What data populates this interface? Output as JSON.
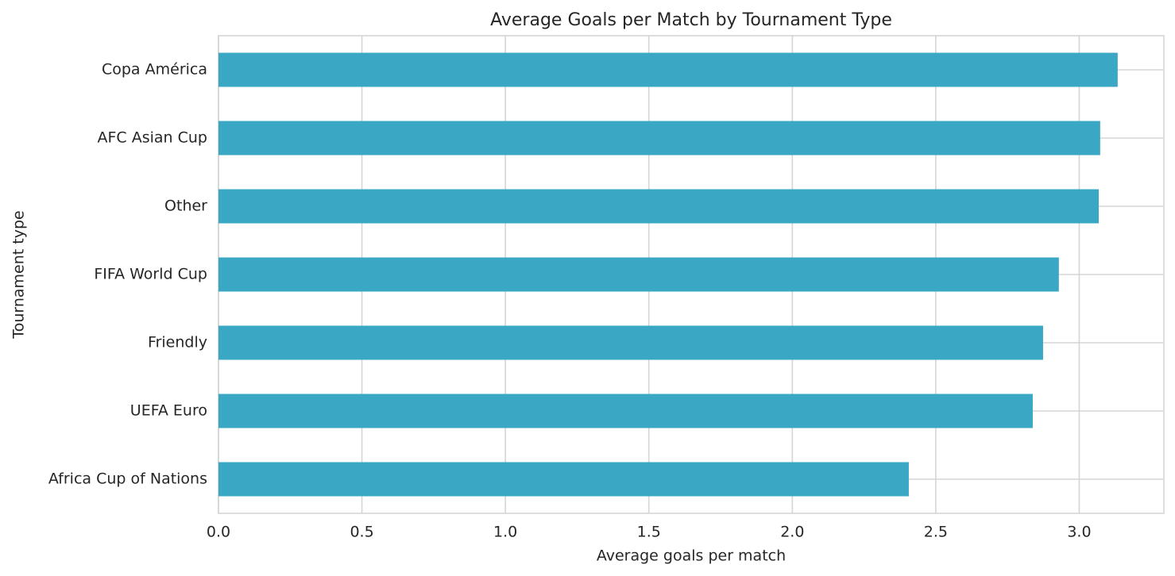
{
  "chart_data": {
    "type": "bar",
    "orientation": "horizontal",
    "title": "Average Goals per Match by Tournament Type",
    "x_label": "Average goals per match",
    "y_label": "Tournament type",
    "categories": [
      "Copa América",
      "AFC Asian Cup",
      "Other",
      "FIFA World Cup",
      "Friendly",
      "UEFA Euro",
      "Africa Cup of Nations"
    ],
    "values": [
      3.134,
      3.073,
      3.068,
      2.929,
      2.874,
      2.838,
      2.406
    ],
    "color": "#3aa8c4",
    "xlim": [
      0,
      3.295
    ],
    "xticks": [
      {
        "value": 0,
        "label": "0.0"
      },
      {
        "value": 0.5,
        "label": "0.5"
      },
      {
        "value": 1,
        "label": "1.0"
      },
      {
        "value": 1.5,
        "label": "1.5"
      },
      {
        "value": 2,
        "label": "2.0"
      },
      {
        "value": 2.5,
        "label": "2.5"
      },
      {
        "value": 3,
        "label": "3.0"
      }
    ],
    "grid": true
  }
}
